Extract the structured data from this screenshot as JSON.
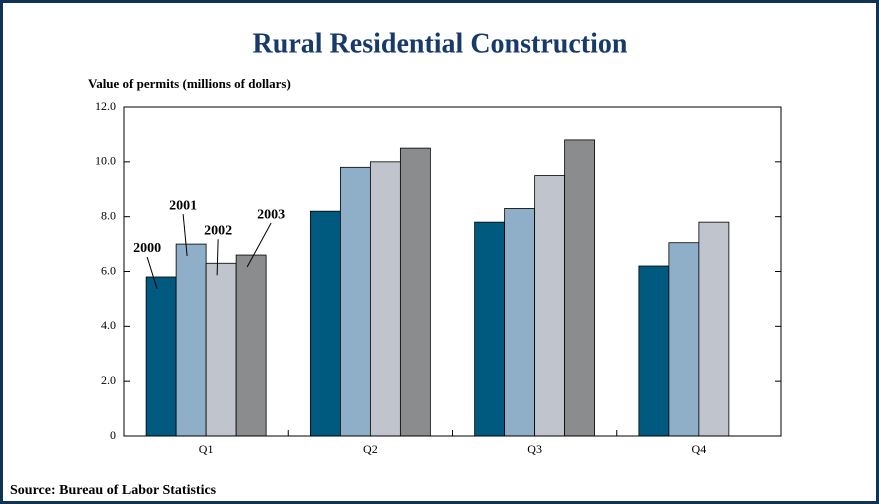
{
  "chart_data": {
    "type": "bar",
    "title": "Rural Residential Construction",
    "y_label": "Value of permits (millions of dollars)",
    "categories": [
      "Q1",
      "Q2",
      "Q3",
      "Q4"
    ],
    "series": [
      {
        "name": "2000",
        "color": "#005a80",
        "values": [
          5.8,
          8.2,
          7.8,
          6.2
        ]
      },
      {
        "name": "2001",
        "color": "#8fafc9",
        "values": [
          7.0,
          9.8,
          8.3,
          7.05
        ]
      },
      {
        "name": "2002",
        "color": "#c0c4cc",
        "values": [
          6.3,
          10.0,
          9.5,
          7.8
        ]
      },
      {
        "name": "2003",
        "color": "#8a8c8e",
        "values": [
          6.6,
          10.5,
          10.8,
          null
        ]
      }
    ],
    "ylim": [
      0,
      12
    ],
    "yticks": [
      0,
      {
        "value": 2,
        "label": "2.0"
      },
      {
        "value": 4,
        "label": "4.0"
      },
      {
        "value": 6,
        "label": "6.0"
      },
      {
        "value": 8,
        "label": "8.0"
      },
      {
        "value": 10,
        "label": "10.0"
      },
      {
        "value": 12,
        "label": "12.0"
      }
    ],
    "source": "Source: Bureau of Labor Statistics"
  }
}
